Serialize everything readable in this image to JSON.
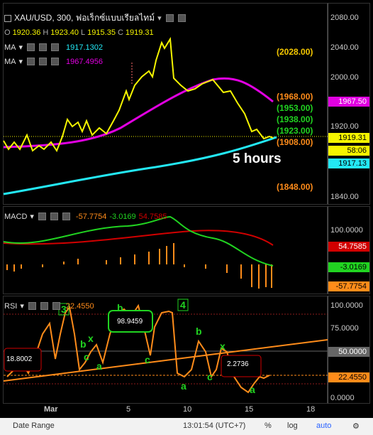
{
  "main": {
    "title": "XAU/USD, 300, ฟอเร็กซ์แบบเรียลไทม์",
    "ohlc": {
      "o_label": "O",
      "o": "1920.36",
      "h_label": "H",
      "h": "1923.40",
      "l_label": "L",
      "l": "1915.35",
      "c_label": "C",
      "c": "1919.31"
    },
    "ma1": {
      "label": "MA",
      "value": "1917.1302"
    },
    "ma2": {
      "label": "MA",
      "value": "1967.4956"
    },
    "annotation": "5 hours",
    "levels": [
      "(2028.00)",
      "(1968.00)",
      "(1953.00)",
      "(1938.00)",
      "(1923.00)",
      "(1908.00)",
      "(1848.00)"
    ],
    "ticks": [
      "2080.00",
      "2040.00",
      "2000.00",
      "1960.00",
      "1920.00",
      "1880.00",
      "1840.00"
    ],
    "tags": {
      "ma2": "1967.50",
      "price": "1919.31",
      "countdown": "58:06",
      "ma1": "1917.13"
    }
  },
  "macd": {
    "label": "MACD",
    "v1": "-57.7754",
    "v2": "-3.0169",
    "v3": "54.7585",
    "ticks": [
      "100.0000",
      "50.0000"
    ],
    "tags": {
      "signal": "54.7585",
      "macd": "-3.0169",
      "hist": "-57.7754"
    }
  },
  "rsi": {
    "label": "RSI",
    "value": "22.4550",
    "ticks": [
      "100.0000",
      "75.0000",
      "50.0000",
      "25.0000",
      "0.0000"
    ],
    "tags": {
      "mid": "50.0000",
      "value": "22.4550"
    },
    "wave_labels": [
      "3",
      "b",
      "x",
      "c",
      "a",
      "b",
      "c",
      "4",
      "b",
      "a",
      "c",
      "x",
      "a"
    ],
    "callouts": [
      "18.8002",
      "98.9459",
      "2.2736"
    ]
  },
  "xaxis": [
    "Mar",
    "5",
    "10",
    "15",
    "18"
  ],
  "bottom": {
    "range": "Date Range",
    "time": "13:01:54 (UTC+7)",
    "pct": "%",
    "log": "log",
    "auto": "auto"
  },
  "colors": {
    "price": "#f5f500",
    "ma_slow": "#e100e1",
    "ma_fast": "#23e8f5",
    "macd": "#21d321",
    "signal": "#d10000",
    "hist": "#ff8c1a",
    "rsi": "#ff8c1a",
    "green_label": "#21d321"
  },
  "chart_data": {
    "type": "line",
    "price_series": [
      1915,
      1910,
      1915,
      1912,
      1908,
      1918,
      1925,
      1912,
      1930,
      1945,
      1938,
      1960,
      2000,
      1990,
      2028,
      2020,
      2045,
      2050,
      1995,
      1980,
      1975,
      1985,
      1975,
      1990,
      1985,
      1970,
      1960,
      1938,
      1925,
      1920,
      1919
    ],
    "rsi_series": [
      18,
      30,
      70,
      40,
      60,
      85,
      98,
      65,
      30,
      55,
      40,
      70,
      55,
      90,
      98,
      80,
      60,
      95,
      92,
      30,
      20,
      72,
      30,
      20,
      60,
      45,
      22,
      15,
      5,
      25,
      22
    ]
  }
}
